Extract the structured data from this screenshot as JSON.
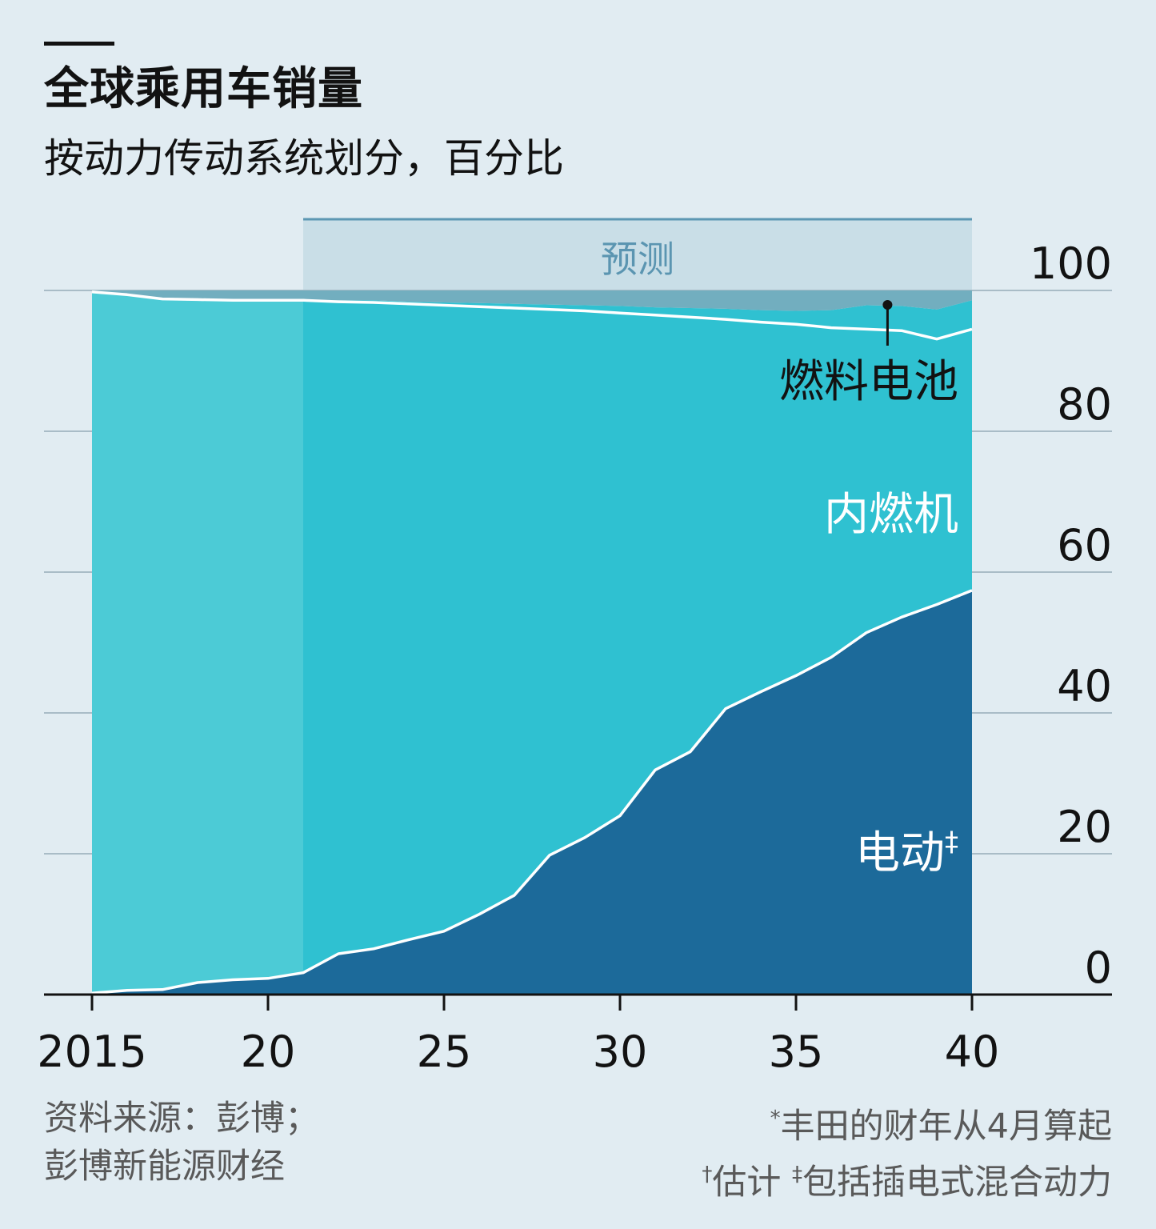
{
  "header": {
    "title": "全球乘用车销量",
    "subtitle": "按动力传动系统划分，百分比"
  },
  "chart_data": {
    "type": "area",
    "stacked": true,
    "x": [
      2015,
      2016,
      2017,
      2018,
      2019,
      2020,
      2021,
      2022,
      2023,
      2024,
      2025,
      2026,
      2027,
      2028,
      2029,
      2030,
      2031,
      2032,
      2033,
      2034,
      2035,
      2036,
      2037,
      2038,
      2039,
      2040
    ],
    "xlim": [
      2015,
      2040
    ],
    "ylim": [
      0,
      100
    ],
    "x_tick_values": [
      2015,
      2020,
      2025,
      2030,
      2035,
      2040
    ],
    "x_tick_labels": [
      "2015",
      "20",
      "25",
      "30",
      "35",
      "40"
    ],
    "y_ticks": [
      0,
      20,
      40,
      60,
      80,
      100
    ],
    "grid": true,
    "forecast_start": 2021,
    "forecast_label": "预测",
    "series": [
      {
        "name": "电动",
        "name_sup": "‡",
        "color": "#1c6a9a",
        "values": [
          0.2,
          0.6,
          0.7,
          1.7,
          2.1,
          2.3,
          3.1,
          5.8,
          6.5,
          7.8,
          9.0,
          11.4,
          14.1,
          19.8,
          22.3,
          25.4,
          31.9,
          34.5,
          40.6,
          43.0,
          45.3,
          47.9,
          51.4,
          53.6,
          55.4,
          57.4
        ]
      },
      {
        "name": "内燃机",
        "color": "#2fc1d1",
        "color_historic": "#4ccbd6",
        "values": [
          99.6,
          98.8,
          98.1,
          97.0,
          96.5,
          96.3,
          95.5,
          92.6,
          91.8,
          90.3,
          88.9,
          86.3,
          83.4,
          77.5,
          74.8,
          71.4,
          64.6,
          61.7,
          55.3,
          52.5,
          49.9,
          46.8,
          43.1,
          40.7,
          37.7,
          37.1
        ]
      },
      {
        "name": "燃料电池",
        "color": "#72aebf",
        "values": [
          0,
          0,
          0,
          0,
          0,
          0,
          0.1,
          0.2,
          0.3,
          0.3,
          0.4,
          0.5,
          0.6,
          0.7,
          0.8,
          1.0,
          1.1,
          1.3,
          1.5,
          1.7,
          1.9,
          2.5,
          3.4,
          3.5,
          4.2,
          4.1
        ]
      }
    ],
    "label_position_year": 2037.6
  },
  "footer": {
    "source_line1": "资料来源：彭博；",
    "source_line2": "彭博新能源财经",
    "note1_sup": "*",
    "note1": "丰田的财年从4月算起",
    "note2_sup1": "†",
    "note2_a": "估计",
    "note2_sup2": "‡",
    "note2_b": "包括插电式混合动力"
  }
}
